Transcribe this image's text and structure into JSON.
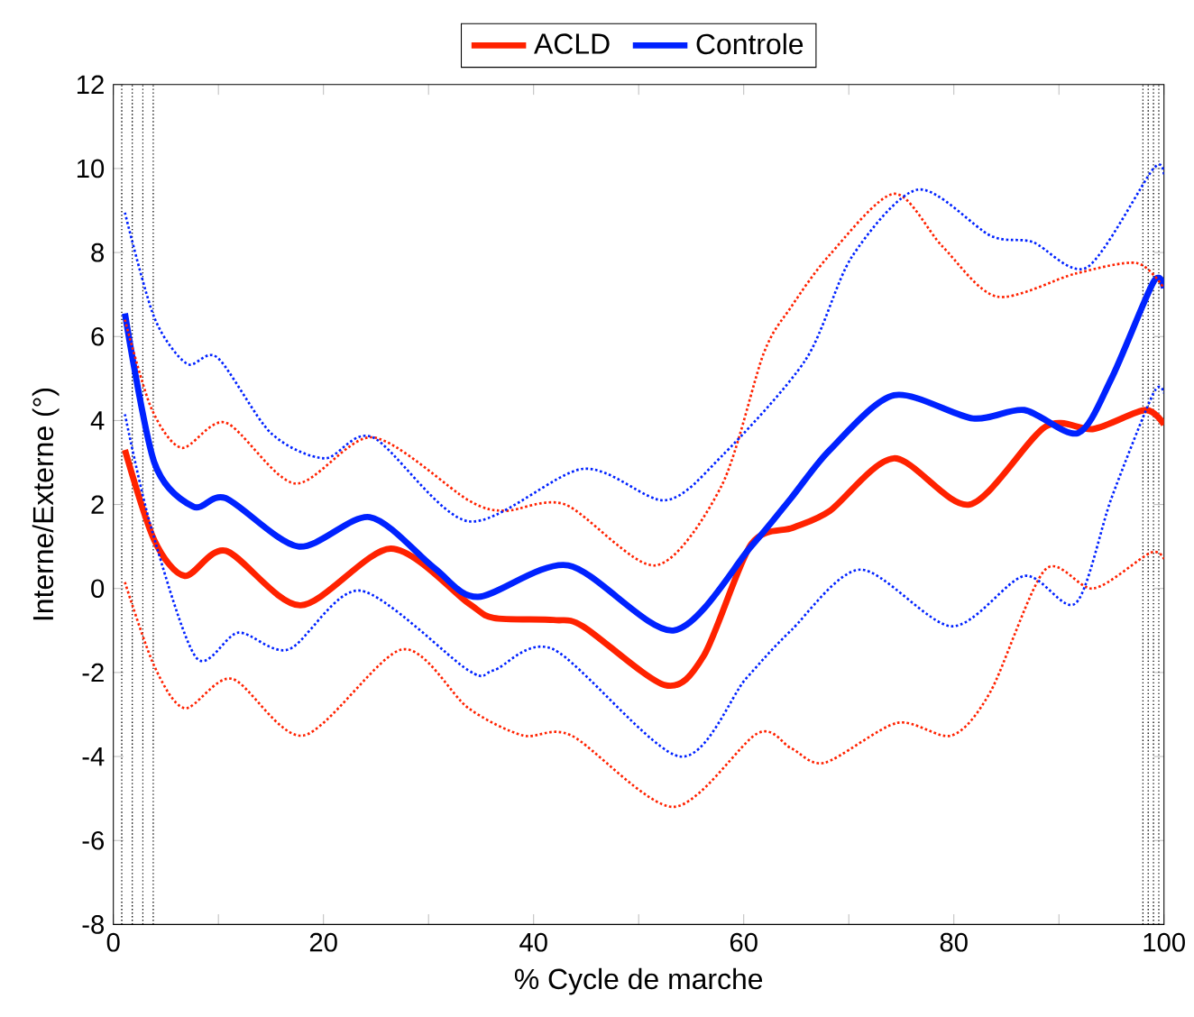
{
  "chart_data": {
    "type": "line",
    "xlabel": "% Cycle de marche",
    "ylabel": "Interne/Externe (°)",
    "xlim": [
      0,
      100
    ],
    "ylim": [
      -8,
      12
    ],
    "xticks": [
      0,
      {
        "value": 10,
        "label": null
      },
      20,
      {
        "value": 30,
        "label": null
      },
      40,
      {
        "value": 50,
        "label": null
      },
      60,
      {
        "value": 70,
        "label": null
      },
      80,
      {
        "value": 90,
        "label": null
      },
      100
    ],
    "yticks": [
      -8,
      -6,
      -4,
      -2,
      0,
      2,
      4,
      6,
      8,
      10,
      12
    ],
    "grid": false,
    "legend": "top",
    "marker": "none",
    "series": [
      {
        "name": "ACLD",
        "color": "#ff2200",
        "line_style": "solid",
        "x": [
          1.1,
          3.9,
          6.8,
          10.7,
          17.8,
          26.4,
          33.8,
          36.2,
          41.9,
          44.7,
          52.5,
          56.2,
          60.7,
          64.7,
          68.2,
          74.3,
          81.5,
          88.7,
          93.3,
          98.2,
          100
        ],
        "values": [
          3.3,
          1.15,
          0.3,
          0.9,
          -0.4,
          0.95,
          -0.35,
          -0.7,
          -0.75,
          -0.9,
          -2.3,
          -1.6,
          1.05,
          1.45,
          1.85,
          3.1,
          2.0,
          3.85,
          3.8,
          4.25,
          3.9
        ]
      },
      {
        "name": "Controle",
        "color": "#0022ff",
        "line_style": "solid",
        "x": [
          1.1,
          3.9,
          7.6,
          10.7,
          17.6,
          24.4,
          30.5,
          34.7,
          43.3,
          53.3,
          60.7,
          64.5,
          68.2,
          74.3,
          81.8,
          86.7,
          91.8,
          95,
          99,
          100
        ],
        "values": [
          6.55,
          3.0,
          1.95,
          2.15,
          1.0,
          1.7,
          0.5,
          -0.2,
          0.55,
          -1.0,
          1.0,
          2.15,
          3.3,
          4.6,
          4.05,
          4.25,
          3.7,
          5.0,
          7.3,
          7.15
        ]
      },
      {
        "color": "#ff2200",
        "line_style": "dotted",
        "x": [
          1.1,
          3.6,
          6.5,
          10.7,
          17.3,
          24.7,
          33.8,
          37.3,
          43,
          51.6,
          57.9,
          61.9,
          64.5,
          68.2,
          74.3,
          78.9,
          84.1,
          91.6,
          97.4,
          100
        ],
        "values": [
          6.4,
          4.3,
          3.35,
          3.95,
          2.5,
          3.6,
          2.1,
          1.85,
          2.0,
          0.55,
          2.45,
          5.6,
          6.7,
          7.95,
          9.4,
          8.15,
          6.95,
          7.5,
          7.75,
          7.15
        ]
      },
      {
        "color": "#ff2200",
        "line_style": "dotted",
        "x": [
          1.1,
          3.9,
          6.8,
          11.3,
          18.1,
          27.5,
          33.8,
          39,
          43.6,
          53.3,
          61.3,
          64.5,
          67.7,
          74.6,
          79.8,
          83.5,
          88.7,
          93.3,
          98.7,
          100
        ],
        "values": [
          0.15,
          -1.85,
          -2.85,
          -2.15,
          -3.5,
          -1.45,
          -2.85,
          -3.5,
          -3.5,
          -5.2,
          -3.45,
          -3.8,
          -4.15,
          -3.2,
          -3.5,
          -2.45,
          0.45,
          0.0,
          0.85,
          0.7
        ]
      },
      {
        "color": "#0022ff",
        "line_style": "dotted",
        "x": [
          1.1,
          3.9,
          7.0,
          9.9,
          15,
          20.1,
          24.7,
          33.8,
          44.7,
          52.5,
          57.9,
          65.9,
          70.3,
          76.6,
          83.5,
          87.5,
          92.7,
          99,
          100
        ],
        "values": [
          8.95,
          6.45,
          5.35,
          5.5,
          3.7,
          3.1,
          3.6,
          1.6,
          2.85,
          2.1,
          3.15,
          5.45,
          7.9,
          9.5,
          8.4,
          8.25,
          7.65,
          10.0,
          9.8
        ]
      },
      {
        "color": "#0022ff",
        "line_style": "dotted",
        "x": [
          1.1,
          3.6,
          7.9,
          11.9,
          16.7,
          23.5,
          33.8,
          36.2,
          41.9,
          53.9,
          60.2,
          64.5,
          71.1,
          79.8,
          86.7,
          91.6,
          95,
          99,
          100
        ],
        "values": [
          4.15,
          1.45,
          -1.65,
          -1.05,
          -1.45,
          -0.05,
          -1.95,
          -1.95,
          -1.45,
          -4.0,
          -2.15,
          -1.0,
          0.45,
          -0.9,
          0.3,
          -0.35,
          2.15,
          4.65,
          4.65
        ]
      }
    ],
    "ref_lines": [
      {
        "axis": "x",
        "value": 0.8,
        "color": "#000000",
        "line_style": "dotted"
      },
      {
        "axis": "x",
        "value": 1.8,
        "color": "#000000",
        "line_style": "dotted"
      },
      {
        "axis": "x",
        "value": 2.8,
        "color": "#000000",
        "line_style": "dotted"
      },
      {
        "axis": "x",
        "value": 3.8,
        "color": "#000000",
        "line_style": "dotted"
      },
      {
        "axis": "x",
        "value": 98,
        "color": "#000000",
        "line_style": "dotted"
      },
      {
        "axis": "x",
        "value": 98.5,
        "color": "#000000",
        "line_style": "dotted"
      },
      {
        "axis": "x",
        "value": 99,
        "color": "#000000",
        "line_style": "dotted"
      },
      {
        "axis": "x",
        "value": 99.5,
        "color": "#000000",
        "line_style": "dotted"
      }
    ]
  }
}
